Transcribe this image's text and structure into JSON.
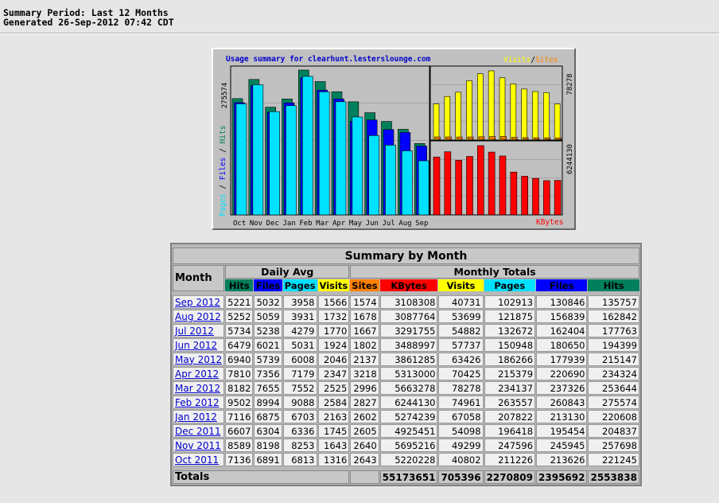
{
  "header": {
    "period": "Summary Period: Last 12 Months",
    "generated": "Generated 26-Sep-2012 07:42 CDT"
  },
  "graph": {
    "title": "Usage summary for clearhunt.lesterslounge.com",
    "legend_left": "Pages / Files / Hits",
    "legend_visits": "Visits",
    "legend_slash": "/",
    "legend_sites": "Sites",
    "legend_kbytes": "KBytes",
    "max_hits_label": "275574",
    "max_visits_label": "78278",
    "max_kbytes_label": "6244130",
    "month_labels": [
      "Oct",
      "Nov",
      "Dec",
      "Jan",
      "Feb",
      "Mar",
      "Apr",
      "May",
      "Jun",
      "Jul",
      "Aug",
      "Sep"
    ],
    "colors": {
      "hits": "#00805c",
      "files": "#0000ff",
      "pages": "#00e0ff",
      "visits": "#ffff00",
      "sites": "#ff8000",
      "kbytes": "#ff0000"
    }
  },
  "table": {
    "title": "Summary by Month",
    "month_header": "Month",
    "daily_avg_header": "Daily Avg",
    "monthly_totals_header": "Monthly Totals",
    "daily_cols": [
      "Hits",
      "Files",
      "Pages",
      "Visits"
    ],
    "monthly_cols": [
      "Sites",
      "KBytes",
      "Visits",
      "Pages",
      "Files",
      "Hits"
    ],
    "rows": [
      {
        "month": "Sep 2012",
        "d_hits": "5221",
        "d_files": "5032",
        "d_pages": "3958",
        "d_visits": "1566",
        "sites": "1574",
        "kbytes": "3108308",
        "visits": "40731",
        "pages": "102913",
        "files": "130846",
        "hits": "135757"
      },
      {
        "month": "Aug 2012",
        "d_hits": "5252",
        "d_files": "5059",
        "d_pages": "3931",
        "d_visits": "1732",
        "sites": "1678",
        "kbytes": "3087764",
        "visits": "53699",
        "pages": "121875",
        "files": "156839",
        "hits": "162842"
      },
      {
        "month": "Jul 2012",
        "d_hits": "5734",
        "d_files": "5238",
        "d_pages": "4279",
        "d_visits": "1770",
        "sites": "1667",
        "kbytes": "3291755",
        "visits": "54882",
        "pages": "132672",
        "files": "162404",
        "hits": "177763"
      },
      {
        "month": "Jun 2012",
        "d_hits": "6479",
        "d_files": "6021",
        "d_pages": "5031",
        "d_visits": "1924",
        "sites": "1802",
        "kbytes": "3488997",
        "visits": "57737",
        "pages": "150948",
        "files": "180650",
        "hits": "194399"
      },
      {
        "month": "May 2012",
        "d_hits": "6940",
        "d_files": "5739",
        "d_pages": "6008",
        "d_visits": "2046",
        "sites": "2137",
        "kbytes": "3861285",
        "visits": "63426",
        "pages": "186266",
        "files": "177939",
        "hits": "215147"
      },
      {
        "month": "Apr 2012",
        "d_hits": "7810",
        "d_files": "7356",
        "d_pages": "7179",
        "d_visits": "2347",
        "sites": "3218",
        "kbytes": "5313000",
        "visits": "70425",
        "pages": "215379",
        "files": "220690",
        "hits": "234324"
      },
      {
        "month": "Mar 2012",
        "d_hits": "8182",
        "d_files": "7655",
        "d_pages": "7552",
        "d_visits": "2525",
        "sites": "2996",
        "kbytes": "5663278",
        "visits": "78278",
        "pages": "234137",
        "files": "237326",
        "hits": "253644"
      },
      {
        "month": "Feb 2012",
        "d_hits": "9502",
        "d_files": "8994",
        "d_pages": "9088",
        "d_visits": "2584",
        "sites": "2827",
        "kbytes": "6244130",
        "visits": "74961",
        "pages": "263557",
        "files": "260843",
        "hits": "275574"
      },
      {
        "month": "Jan 2012",
        "d_hits": "7116",
        "d_files": "6875",
        "d_pages": "6703",
        "d_visits": "2163",
        "sites": "2602",
        "kbytes": "5274239",
        "visits": "67058",
        "pages": "207822",
        "files": "213130",
        "hits": "220608"
      },
      {
        "month": "Dec 2011",
        "d_hits": "6607",
        "d_files": "6304",
        "d_pages": "6336",
        "d_visits": "1745",
        "sites": "2605",
        "kbytes": "4925451",
        "visits": "54098",
        "pages": "196418",
        "files": "195454",
        "hits": "204837"
      },
      {
        "month": "Nov 2011",
        "d_hits": "8589",
        "d_files": "8198",
        "d_pages": "8253",
        "d_visits": "1643",
        "sites": "2640",
        "kbytes": "5695216",
        "visits": "49299",
        "pages": "247596",
        "files": "245945",
        "hits": "257698"
      },
      {
        "month": "Oct 2011",
        "d_hits": "7136",
        "d_files": "6891",
        "d_pages": "6813",
        "d_visits": "1316",
        "sites": "2643",
        "kbytes": "5220228",
        "visits": "40802",
        "pages": "211226",
        "files": "213626",
        "hits": "221245"
      }
    ],
    "totals": {
      "label": "Totals",
      "kbytes": "55173651",
      "visits": "705396",
      "pages": "2270809",
      "files": "2395692",
      "hits": "2553838"
    }
  }
}
